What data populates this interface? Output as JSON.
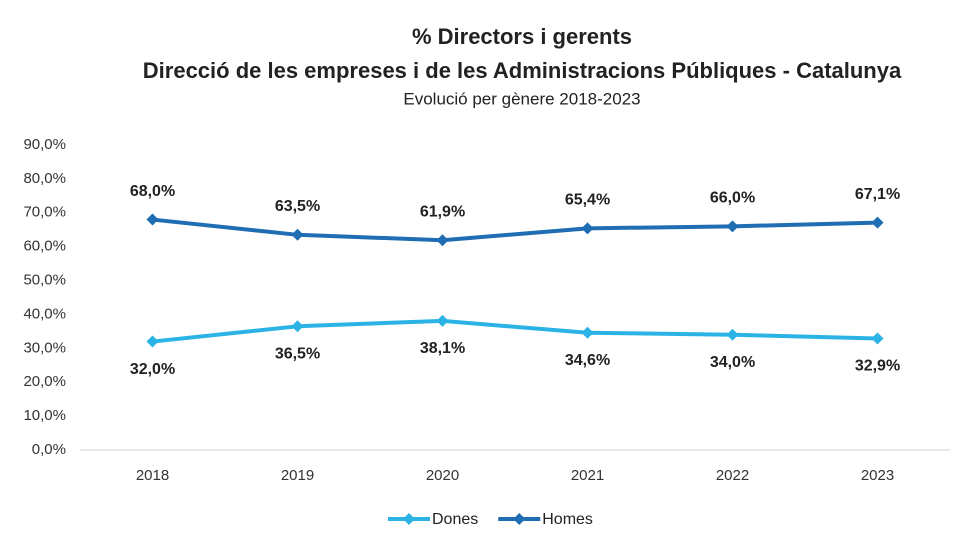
{
  "chart_data": {
    "type": "line",
    "title": [
      "% Directors i gerents",
      "Direcció de les empreses i de les Administracions Públiques - Catalunya"
    ],
    "subtitle": "Evolució per gènere 2018-2023",
    "categories": [
      "2018",
      "2019",
      "2020",
      "2021",
      "2022",
      "2023"
    ],
    "series": [
      {
        "name": "Dones",
        "color": "#2bb3e6",
        "values": [
          32.0,
          36.5,
          38.1,
          34.6,
          34.0,
          32.9
        ],
        "value_labels": [
          "32,0%",
          "36,5%",
          "38,1%",
          "34,6%",
          "34,0%",
          "32,9%"
        ]
      },
      {
        "name": "Homes",
        "color": "#1f6db3",
        "values": [
          68.0,
          63.5,
          61.9,
          65.4,
          66.0,
          67.1
        ],
        "value_labels": [
          "68,0%",
          "63,5%",
          "61,9%",
          "65,4%",
          "66,0%",
          "67,1%"
        ]
      }
    ],
    "ylim": [
      0,
      90
    ],
    "yticks": [
      {
        "value": 0,
        "label": "0,0%"
      },
      {
        "value": 10,
        "label": "10,0%"
      },
      {
        "value": 20,
        "label": "20,0%"
      },
      {
        "value": 30,
        "label": "30,0%"
      },
      {
        "value": 40,
        "label": "40,0%"
      },
      {
        "value": 50,
        "label": "50,0%"
      },
      {
        "value": 60,
        "label": "60,0%"
      },
      {
        "value": 70,
        "label": "70,0%"
      },
      {
        "value": 80,
        "label": "80,0%"
      },
      {
        "value": 90,
        "label": "90,0%"
      }
    ],
    "grid": false,
    "legend": "bottom"
  }
}
